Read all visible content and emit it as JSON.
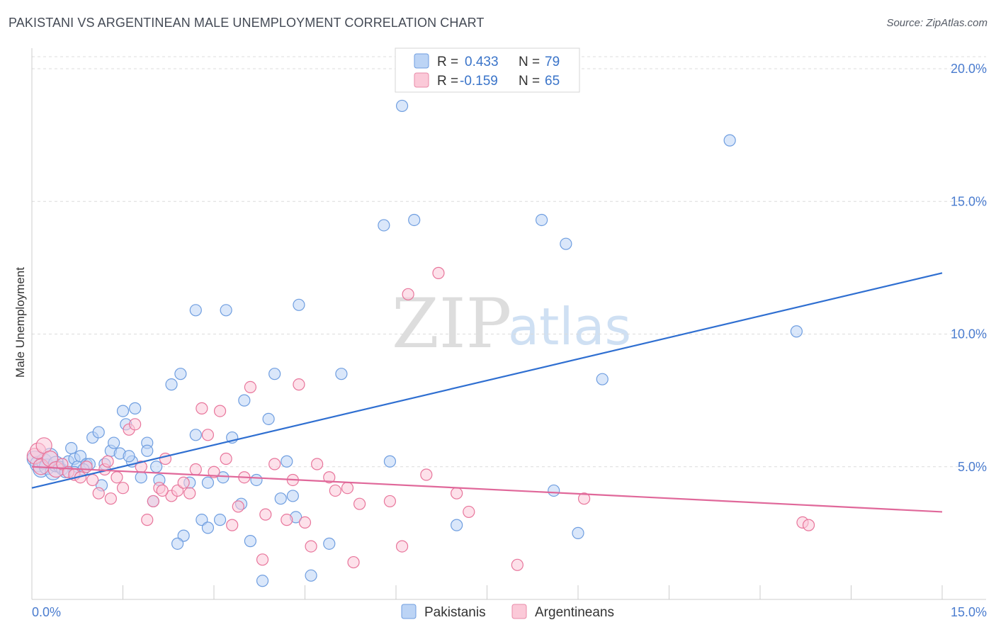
{
  "title": "PAKISTANI VS ARGENTINEAN MALE UNEMPLOYMENT CORRELATION CHART",
  "source": "Source: ZipAtlas.com",
  "watermark": {
    "zip": "ZIP",
    "atlas": "atlas"
  },
  "legend": {
    "r_label": "R =",
    "n_label": "N =",
    "rows": [
      {
        "r": "0.433",
        "n": "79",
        "fill": "#bcd4f5",
        "stroke": "#6f9ee0"
      },
      {
        "r": "-0.159",
        "n": "65",
        "fill": "#fbc9d8",
        "stroke": "#e88aa8"
      }
    ]
  },
  "chart_data": {
    "type": "scatter",
    "title": "PAKISTANI VS ARGENTINEAN MALE UNEMPLOYMENT CORRELATION CHART",
    "xlabel": "",
    "ylabel": "Male Unemployment",
    "xlim": [
      0,
      15
    ],
    "ylim": [
      0,
      20
    ],
    "x_tick_labels": [
      "0.0%",
      "15.0%"
    ],
    "y_ticks": [
      5,
      10,
      15,
      20
    ],
    "y_tick_labels": [
      "5.0%",
      "10.0%",
      "15.0%",
      "20.0%"
    ],
    "grid": "horizontal dashed",
    "legend_position": "bottom-center",
    "series": [
      {
        "name": "Pakistanis",
        "color": "#6f9ee0",
        "fill": "#bcd4f5",
        "r": 0.433,
        "n": 79,
        "trend": [
          [
            0,
            4.2
          ],
          [
            15,
            12.3
          ]
        ],
        "points": [
          [
            0.05,
            5.3
          ],
          [
            0.1,
            5.1
          ],
          [
            0.15,
            4.9
          ],
          [
            0.2,
            5.2
          ],
          [
            0.25,
            5.0
          ],
          [
            0.3,
            5.4
          ],
          [
            0.35,
            4.8
          ],
          [
            0.4,
            5.1
          ],
          [
            0.45,
            5.0
          ],
          [
            0.5,
            4.9
          ],
          [
            0.55,
            4.8
          ],
          [
            0.6,
            5.2
          ],
          [
            0.65,
            5.7
          ],
          [
            0.7,
            5.3
          ],
          [
            0.75,
            5.0
          ],
          [
            0.8,
            5.4
          ],
          [
            0.9,
            5.1
          ],
          [
            1.0,
            6.1
          ],
          [
            1.1,
            6.3
          ],
          [
            1.2,
            5.1
          ],
          [
            1.3,
            5.6
          ],
          [
            1.35,
            5.9
          ],
          [
            1.45,
            5.5
          ],
          [
            1.5,
            7.1
          ],
          [
            1.65,
            5.2
          ],
          [
            1.7,
            7.2
          ],
          [
            1.8,
            4.6
          ],
          [
            1.9,
            5.9
          ],
          [
            2.0,
            3.7
          ],
          [
            2.1,
            4.5
          ],
          [
            2.3,
            8.1
          ],
          [
            2.45,
            8.5
          ],
          [
            2.5,
            2.4
          ],
          [
            2.6,
            4.4
          ],
          [
            2.7,
            6.2
          ],
          [
            2.8,
            3.0
          ],
          [
            2.9,
            2.7
          ],
          [
            3.1,
            3.0
          ],
          [
            3.2,
            10.9
          ],
          [
            3.3,
            6.1
          ],
          [
            3.5,
            7.5
          ],
          [
            3.6,
            2.2
          ],
          [
            3.7,
            4.5
          ],
          [
            3.8,
            0.7
          ],
          [
            3.9,
            6.8
          ],
          [
            4.0,
            8.5
          ],
          [
            4.1,
            3.8
          ],
          [
            4.2,
            5.2
          ],
          [
            4.3,
            3.9
          ],
          [
            4.4,
            11.1
          ],
          [
            4.6,
            0.9
          ],
          [
            4.9,
            2.1
          ],
          [
            5.1,
            8.5
          ],
          [
            5.8,
            14.1
          ],
          [
            5.9,
            5.2
          ],
          [
            6.3,
            14.3
          ],
          [
            7.0,
            2.8
          ],
          [
            8.6,
            4.1
          ],
          [
            8.4,
            14.3
          ],
          [
            8.8,
            13.4
          ],
          [
            9.0,
            2.5
          ],
          [
            11.5,
            17.3
          ],
          [
            12.6,
            10.1
          ],
          [
            6.1,
            18.6
          ],
          [
            2.7,
            10.9
          ],
          [
            1.9,
            5.6
          ],
          [
            1.55,
            6.6
          ],
          [
            1.15,
            4.3
          ],
          [
            0.95,
            5.1
          ],
          [
            0.85,
            4.9
          ],
          [
            2.05,
            5.0
          ],
          [
            3.15,
            4.6
          ],
          [
            4.35,
            3.1
          ],
          [
            3.45,
            3.6
          ],
          [
            2.4,
            2.1
          ],
          [
            2.9,
            4.4
          ],
          [
            1.6,
            5.4
          ],
          [
            0.7,
            4.8
          ],
          [
            9.4,
            8.3
          ]
        ]
      },
      {
        "name": "Argentineans",
        "color": "#e8759b",
        "fill": "#fbc9d8",
        "r": -0.159,
        "n": 65,
        "trend": [
          [
            0,
            5.0
          ],
          [
            15,
            3.3
          ]
        ],
        "points": [
          [
            0.05,
            5.4
          ],
          [
            0.1,
            5.6
          ],
          [
            0.15,
            5.0
          ],
          [
            0.2,
            5.8
          ],
          [
            0.3,
            5.3
          ],
          [
            0.4,
            4.9
          ],
          [
            0.5,
            5.1
          ],
          [
            0.6,
            4.8
          ],
          [
            0.7,
            4.7
          ],
          [
            0.8,
            4.6
          ],
          [
            0.9,
            5.0
          ],
          [
            1.0,
            4.5
          ],
          [
            1.1,
            4.0
          ],
          [
            1.2,
            4.9
          ],
          [
            1.3,
            3.8
          ],
          [
            1.4,
            4.6
          ],
          [
            1.5,
            4.2
          ],
          [
            1.6,
            6.4
          ],
          [
            1.7,
            6.6
          ],
          [
            1.8,
            5.0
          ],
          [
            1.9,
            3.0
          ],
          [
            2.0,
            3.7
          ],
          [
            2.1,
            4.2
          ],
          [
            2.2,
            5.3
          ],
          [
            2.3,
            3.9
          ],
          [
            2.4,
            4.1
          ],
          [
            2.5,
            4.4
          ],
          [
            2.6,
            4.0
          ],
          [
            2.7,
            4.9
          ],
          [
            2.8,
            7.2
          ],
          [
            2.9,
            6.2
          ],
          [
            3.0,
            4.8
          ],
          [
            3.1,
            7.1
          ],
          [
            3.2,
            5.3
          ],
          [
            3.3,
            2.8
          ],
          [
            3.4,
            3.5
          ],
          [
            3.5,
            4.6
          ],
          [
            3.6,
            8.0
          ],
          [
            3.8,
            1.5
          ],
          [
            4.0,
            5.1
          ],
          [
            4.2,
            3.0
          ],
          [
            4.3,
            4.5
          ],
          [
            4.4,
            8.1
          ],
          [
            4.5,
            2.9
          ],
          [
            4.6,
            2.0
          ],
          [
            4.7,
            5.1
          ],
          [
            4.9,
            4.6
          ],
          [
            5.0,
            4.1
          ],
          [
            5.2,
            4.2
          ],
          [
            5.3,
            1.4
          ],
          [
            5.4,
            3.6
          ],
          [
            5.9,
            3.7
          ],
          [
            6.1,
            2.0
          ],
          [
            6.2,
            11.5
          ],
          [
            6.5,
            4.7
          ],
          [
            6.7,
            12.3
          ],
          [
            7.0,
            4.0
          ],
          [
            7.2,
            3.3
          ],
          [
            8.0,
            1.3
          ],
          [
            9.1,
            3.8
          ],
          [
            12.7,
            2.9
          ],
          [
            12.8,
            2.8
          ],
          [
            3.85,
            3.2
          ],
          [
            1.25,
            5.2
          ],
          [
            2.15,
            4.1
          ]
        ]
      }
    ]
  },
  "bottom_legend": [
    {
      "label": "Pakistanis",
      "fill": "#bcd4f5",
      "stroke": "#6f9ee0"
    },
    {
      "label": "Argentineans",
      "fill": "#fbc9d8",
      "stroke": "#e88aa8"
    }
  ]
}
